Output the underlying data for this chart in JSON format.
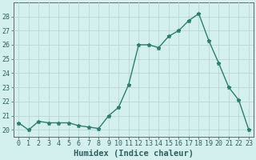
{
  "x": [
    0,
    1,
    2,
    3,
    4,
    5,
    6,
    7,
    8,
    9,
    10,
    11,
    12,
    13,
    14,
    15,
    16,
    17,
    18,
    19,
    20,
    21,
    22,
    23
  ],
  "y": [
    20.5,
    20.0,
    20.6,
    20.5,
    20.5,
    20.5,
    20.3,
    20.2,
    20.1,
    21.0,
    21.6,
    23.2,
    26.0,
    26.0,
    25.8,
    26.6,
    27.0,
    27.7,
    28.2,
    26.3,
    24.7,
    23.0,
    22.1,
    20.0
  ],
  "xlabel": "Humidex (Indice chaleur)",
  "ylim": [
    19.5,
    29.0
  ],
  "xlim": [
    -0.5,
    23.5
  ],
  "yticks": [
    20,
    21,
    22,
    23,
    24,
    25,
    26,
    27,
    28
  ],
  "xtick_labels": [
    "0",
    "1",
    "2",
    "3",
    "4",
    "5",
    "6",
    "7",
    "8",
    "9",
    "10",
    "11",
    "12",
    "13",
    "14",
    "15",
    "16",
    "17",
    "18",
    "19",
    "20",
    "21",
    "22",
    "23"
  ],
  "line_color": "#2e7d6e",
  "bg_color": "#d4f0ee",
  "grid_color": "#b8d8d4",
  "axis_color": "#666666",
  "tick_label_color": "#2e6060",
  "xlabel_color": "#2e6060",
  "grid_linewidth": 0.6,
  "line_linewidth": 1.0,
  "marker_size": 3.5,
  "tick_fontsize": 6.0,
  "xlabel_fontsize": 7.5
}
